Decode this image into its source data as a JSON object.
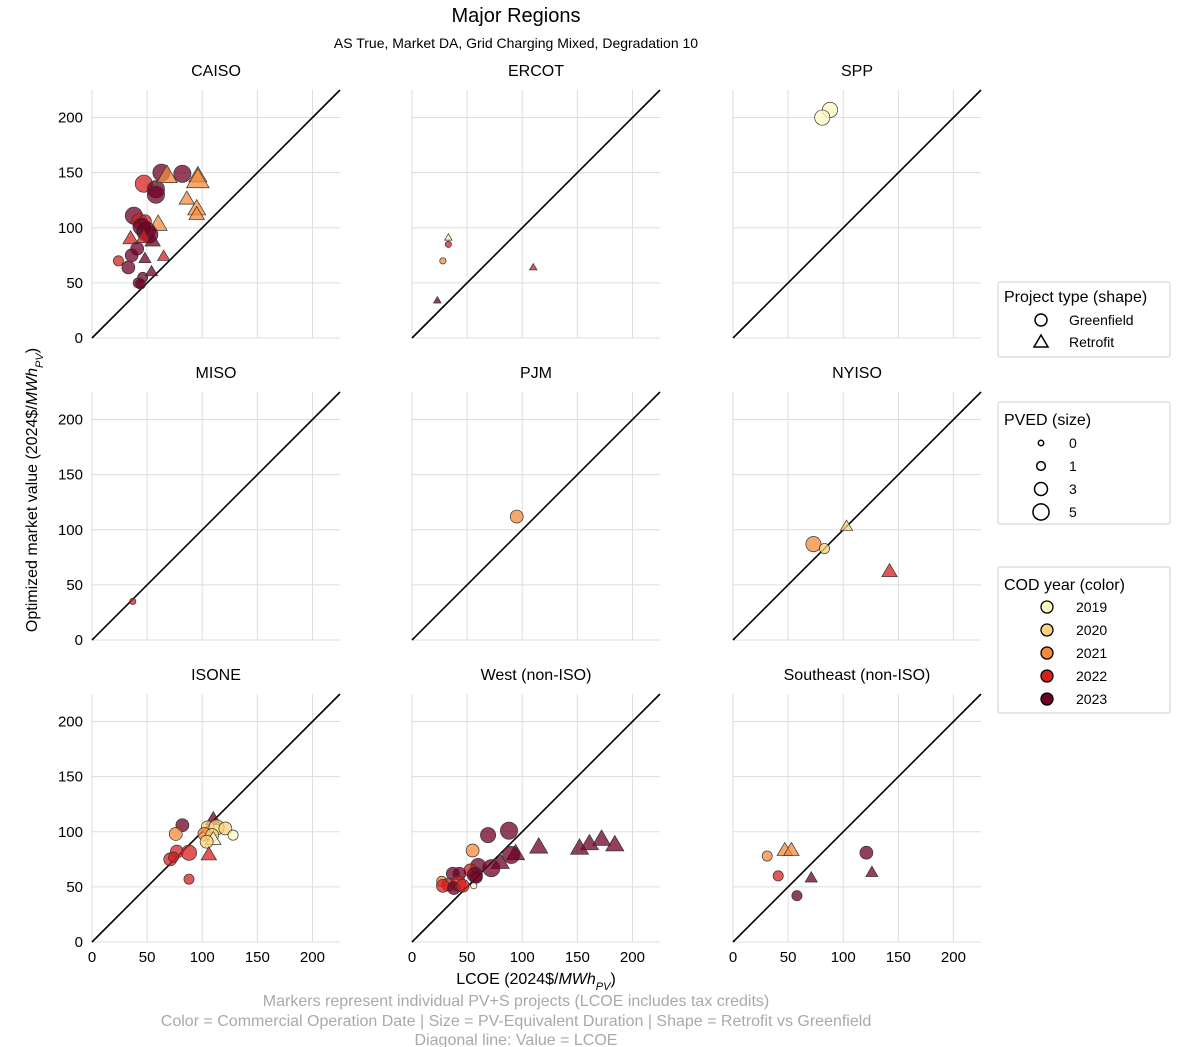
{
  "chart_data": {
    "type": "scatter",
    "title": "Major Regions",
    "subtitle": "AS True, Market DA, Grid Charging Mixed, Degradation 10",
    "xlabel": "LCOE (2024$/MWh_PV)",
    "ylabel": "Optimized market value (2024$/MWh_PV)",
    "xlim": [
      0,
      225
    ],
    "ylim": [
      0,
      225
    ],
    "xticks": [
      0,
      50,
      100,
      150,
      200
    ],
    "yticks": [
      0,
      50,
      100,
      150,
      200
    ],
    "grid": true,
    "diagonal": "y = x",
    "legends": {
      "shape": {
        "title": "Project type (shape)",
        "items": [
          {
            "label": "Greenfield",
            "shape": "circle"
          },
          {
            "label": "Retrofit",
            "shape": "triangle"
          }
        ]
      },
      "size": {
        "title": "PVED (size)",
        "items": [
          {
            "label": "0",
            "pved": 0
          },
          {
            "label": "1",
            "pved": 1
          },
          {
            "label": "3",
            "pved": 3
          },
          {
            "label": "5",
            "pved": 5
          }
        ]
      },
      "color": {
        "title": "COD year (color)",
        "items": [
          {
            "label": "2019",
            "color": "#fef9c3"
          },
          {
            "label": "2020",
            "color": "#fed27a"
          },
          {
            "label": "2021",
            "color": "#f6893c"
          },
          {
            "label": "2022",
            "color": "#d62020"
          },
          {
            "label": "2023",
            "color": "#6d0026"
          }
        ]
      }
    },
    "panels": [
      {
        "title": "CAISO",
        "points": [
          {
            "x": 47,
            "y": 140,
            "year": 2022,
            "shape": "circle",
            "pved": 4
          },
          {
            "x": 63,
            "y": 150,
            "year": 2023,
            "shape": "circle",
            "pved": 4
          },
          {
            "x": 82,
            "y": 149,
            "year": 2023,
            "shape": "circle",
            "pved": 4
          },
          {
            "x": 58,
            "y": 135,
            "year": 2023,
            "shape": "circle",
            "pved": 4
          },
          {
            "x": 58,
            "y": 130,
            "year": 2023,
            "shape": "circle",
            "pved": 4
          },
          {
            "x": 68,
            "y": 147,
            "year": 2021,
            "shape": "triangle",
            "pved": 4
          },
          {
            "x": 96,
            "y": 147,
            "year": 2021,
            "shape": "triangle",
            "pved": 3
          },
          {
            "x": 96,
            "y": 143,
            "year": 2021,
            "shape": "triangle",
            "pved": 5
          },
          {
            "x": 86,
            "y": 126,
            "year": 2021,
            "shape": "triangle",
            "pved": 2
          },
          {
            "x": 95,
            "y": 117,
            "year": 2021,
            "shape": "triangle",
            "pved": 3
          },
          {
            "x": 95,
            "y": 112,
            "year": 2021,
            "shape": "triangle",
            "pved": 2
          },
          {
            "x": 38,
            "y": 111,
            "year": 2023,
            "shape": "circle",
            "pved": 4
          },
          {
            "x": 43,
            "y": 106,
            "year": 2022,
            "shape": "circle",
            "pved": 3
          },
          {
            "x": 48,
            "y": 106,
            "year": 2022,
            "shape": "circle",
            "pved": 2
          },
          {
            "x": 60,
            "y": 103,
            "year": 2021,
            "shape": "triangle",
            "pved": 3
          },
          {
            "x": 45,
            "y": 101,
            "year": 2023,
            "shape": "circle",
            "pved": 4
          },
          {
            "x": 49,
            "y": 97,
            "year": 2023,
            "shape": "circle",
            "pved": 5
          },
          {
            "x": 52,
            "y": 94,
            "year": 2023,
            "shape": "circle",
            "pved": 4
          },
          {
            "x": 47,
            "y": 91,
            "year": 2022,
            "shape": "triangle",
            "pved": 2
          },
          {
            "x": 55,
            "y": 88,
            "year": 2023,
            "shape": "triangle",
            "pved": 2
          },
          {
            "x": 35,
            "y": 90,
            "year": 2022,
            "shape": "triangle",
            "pved": 2
          },
          {
            "x": 41,
            "y": 81,
            "year": 2023,
            "shape": "circle",
            "pved": 2
          },
          {
            "x": 36,
            "y": 75,
            "year": 2023,
            "shape": "circle",
            "pved": 2
          },
          {
            "x": 24,
            "y": 70,
            "year": 2022,
            "shape": "circle",
            "pved": 1
          },
          {
            "x": 48,
            "y": 72,
            "year": 2023,
            "shape": "triangle",
            "pved": 1
          },
          {
            "x": 65,
            "y": 74,
            "year": 2022,
            "shape": "triangle",
            "pved": 1
          },
          {
            "x": 33,
            "y": 64,
            "year": 2023,
            "shape": "circle",
            "pved": 2
          },
          {
            "x": 54,
            "y": 60,
            "year": 2023,
            "shape": "triangle",
            "pved": 1
          },
          {
            "x": 46,
            "y": 55,
            "year": 2023,
            "shape": "circle",
            "pved": 1
          },
          {
            "x": 42,
            "y": 50,
            "year": 2023,
            "shape": "circle",
            "pved": 1
          },
          {
            "x": 44,
            "y": 49,
            "year": 2023,
            "shape": "circle",
            "pved": 1
          }
        ]
      },
      {
        "title": "ERCOT",
        "points": [
          {
            "x": 33,
            "y": 91,
            "year": 2019,
            "shape": "triangle",
            "pved": 0
          },
          {
            "x": 33,
            "y": 85,
            "year": 2022,
            "shape": "circle",
            "pved": 0
          },
          {
            "x": 28,
            "y": 70,
            "year": 2021,
            "shape": "circle",
            "pved": 0
          },
          {
            "x": 110,
            "y": 64,
            "year": 2022,
            "shape": "triangle",
            "pved": 0
          },
          {
            "x": 23,
            "y": 34,
            "year": 2023,
            "shape": "triangle",
            "pved": 0
          }
        ]
      },
      {
        "title": "SPP",
        "points": [
          {
            "x": 88,
            "y": 207,
            "year": 2019,
            "shape": "circle",
            "pved": 3
          },
          {
            "x": 81,
            "y": 200,
            "year": 2019,
            "shape": "circle",
            "pved": 3
          }
        ]
      },
      {
        "title": "MISO",
        "points": [
          {
            "x": 37,
            "y": 35,
            "year": 2022,
            "shape": "circle",
            "pved": 0
          }
        ]
      },
      {
        "title": "PJM",
        "points": [
          {
            "x": 95,
            "y": 112,
            "year": 2021,
            "shape": "circle",
            "pved": 2
          }
        ]
      },
      {
        "title": "NYISO",
        "points": [
          {
            "x": 73,
            "y": 87,
            "year": 2021,
            "shape": "circle",
            "pved": 3
          },
          {
            "x": 83,
            "y": 83,
            "year": 2020,
            "shape": "circle",
            "pved": 1
          },
          {
            "x": 103,
            "y": 103,
            "year": 2020,
            "shape": "triangle",
            "pved": 1
          },
          {
            "x": 142,
            "y": 62,
            "year": 2022,
            "shape": "triangle",
            "pved": 2
          }
        ]
      },
      {
        "title": "ISONE",
        "points": [
          {
            "x": 82,
            "y": 106,
            "year": 2023,
            "shape": "circle",
            "pved": 2
          },
          {
            "x": 76,
            "y": 98,
            "year": 2021,
            "shape": "circle",
            "pved": 2
          },
          {
            "x": 110,
            "y": 111,
            "year": 2023,
            "shape": "triangle",
            "pved": 2
          },
          {
            "x": 105,
            "y": 104,
            "year": 2020,
            "shape": "circle",
            "pved": 2
          },
          {
            "x": 113,
            "y": 104,
            "year": 2020,
            "shape": "circle",
            "pved": 3
          },
          {
            "x": 121,
            "y": 103,
            "year": 2020,
            "shape": "circle",
            "pved": 2
          },
          {
            "x": 102,
            "y": 98,
            "year": 2021,
            "shape": "circle",
            "pved": 2
          },
          {
            "x": 109,
            "y": 97,
            "year": 2020,
            "shape": "circle",
            "pved": 2
          },
          {
            "x": 128,
            "y": 97,
            "year": 2019,
            "shape": "circle",
            "pved": 1
          },
          {
            "x": 110,
            "y": 93,
            "year": 2019,
            "shape": "triangle",
            "pved": 2
          },
          {
            "x": 104,
            "y": 91,
            "year": 2020,
            "shape": "circle",
            "pved": 2
          },
          {
            "x": 77,
            "y": 82,
            "year": 2022,
            "shape": "circle",
            "pved": 2
          },
          {
            "x": 88,
            "y": 81,
            "year": 2022,
            "shape": "circle",
            "pved": 3
          },
          {
            "x": 106,
            "y": 79,
            "year": 2022,
            "shape": "triangle",
            "pved": 2
          },
          {
            "x": 71,
            "y": 75,
            "year": 2022,
            "shape": "circle",
            "pved": 2
          },
          {
            "x": 74,
            "y": 77,
            "year": 2022,
            "shape": "circle",
            "pved": 1
          },
          {
            "x": 88,
            "y": 57,
            "year": 2022,
            "shape": "circle",
            "pved": 1
          }
        ]
      },
      {
        "title": "West (non-ISO)",
        "points": [
          {
            "x": 88,
            "y": 101,
            "year": 2023,
            "shape": "circle",
            "pved": 4
          },
          {
            "x": 69,
            "y": 97,
            "year": 2023,
            "shape": "circle",
            "pved": 3
          },
          {
            "x": 55,
            "y": 83,
            "year": 2021,
            "shape": "circle",
            "pved": 2
          },
          {
            "x": 94,
            "y": 80,
            "year": 2023,
            "shape": "triangle",
            "pved": 3
          },
          {
            "x": 115,
            "y": 86,
            "year": 2023,
            "shape": "triangle",
            "pved": 3
          },
          {
            "x": 152,
            "y": 85,
            "year": 2023,
            "shape": "triangle",
            "pved": 3
          },
          {
            "x": 161,
            "y": 89,
            "year": 2023,
            "shape": "triangle",
            "pved": 3
          },
          {
            "x": 172,
            "y": 93,
            "year": 2023,
            "shape": "triangle",
            "pved": 3
          },
          {
            "x": 184,
            "y": 88,
            "year": 2023,
            "shape": "triangle",
            "pved": 3
          },
          {
            "x": 90,
            "y": 79,
            "year": 2023,
            "shape": "circle",
            "pved": 4
          },
          {
            "x": 80,
            "y": 72,
            "year": 2023,
            "shape": "triangle",
            "pved": 3
          },
          {
            "x": 72,
            "y": 67,
            "year": 2023,
            "shape": "circle",
            "pved": 4
          },
          {
            "x": 60,
            "y": 69,
            "year": 2023,
            "shape": "circle",
            "pved": 3
          },
          {
            "x": 53,
            "y": 65,
            "year": 2022,
            "shape": "circle",
            "pved": 2
          },
          {
            "x": 57,
            "y": 61,
            "year": 2023,
            "shape": "circle",
            "pved": 3
          },
          {
            "x": 37,
            "y": 62,
            "year": 2023,
            "shape": "circle",
            "pved": 2
          },
          {
            "x": 43,
            "y": 62,
            "year": 2023,
            "shape": "circle",
            "pved": 2
          },
          {
            "x": 58,
            "y": 59,
            "year": 2023,
            "shape": "circle",
            "pved": 2
          },
          {
            "x": 27,
            "y": 55,
            "year": 2021,
            "shape": "circle",
            "pved": 1
          },
          {
            "x": 33,
            "y": 52,
            "year": 2022,
            "shape": "circle",
            "pved": 2
          },
          {
            "x": 28,
            "y": 51,
            "year": 2022,
            "shape": "circle",
            "pved": 2
          },
          {
            "x": 42,
            "y": 53,
            "year": 2022,
            "shape": "circle",
            "pved": 3
          },
          {
            "x": 38,
            "y": 49,
            "year": 2023,
            "shape": "circle",
            "pved": 2
          },
          {
            "x": 56,
            "y": 51,
            "year": 2019,
            "shape": "circle",
            "pved": 0
          },
          {
            "x": 46,
            "y": 51,
            "year": 2022,
            "shape": "circle",
            "pved": 2
          }
        ]
      },
      {
        "title": "Southeast (non-ISO)",
        "points": [
          {
            "x": 31,
            "y": 78,
            "year": 2021,
            "shape": "circle",
            "pved": 1
          },
          {
            "x": 47,
            "y": 83,
            "year": 2021,
            "shape": "triangle",
            "pved": 2
          },
          {
            "x": 53,
            "y": 83,
            "year": 2021,
            "shape": "triangle",
            "pved": 2
          },
          {
            "x": 41,
            "y": 60,
            "year": 2022,
            "shape": "circle",
            "pved": 1
          },
          {
            "x": 121,
            "y": 81,
            "year": 2023,
            "shape": "circle",
            "pved": 2
          },
          {
            "x": 126,
            "y": 63,
            "year": 2023,
            "shape": "triangle",
            "pved": 1
          },
          {
            "x": 71,
            "y": 58,
            "year": 2023,
            "shape": "triangle",
            "pved": 1
          },
          {
            "x": 58,
            "y": 42,
            "year": 2023,
            "shape": "circle",
            "pved": 1
          }
        ]
      }
    ]
  },
  "footer": {
    "line1": "Markers represent individual PV+S projects (LCOE includes tax credits)",
    "line2": "Color = Commercial Operation Date | Size = PV-Equivalent Duration | Shape = Retrofit vs Greenfield",
    "line3": "Diagonal line: Value = LCOE"
  }
}
